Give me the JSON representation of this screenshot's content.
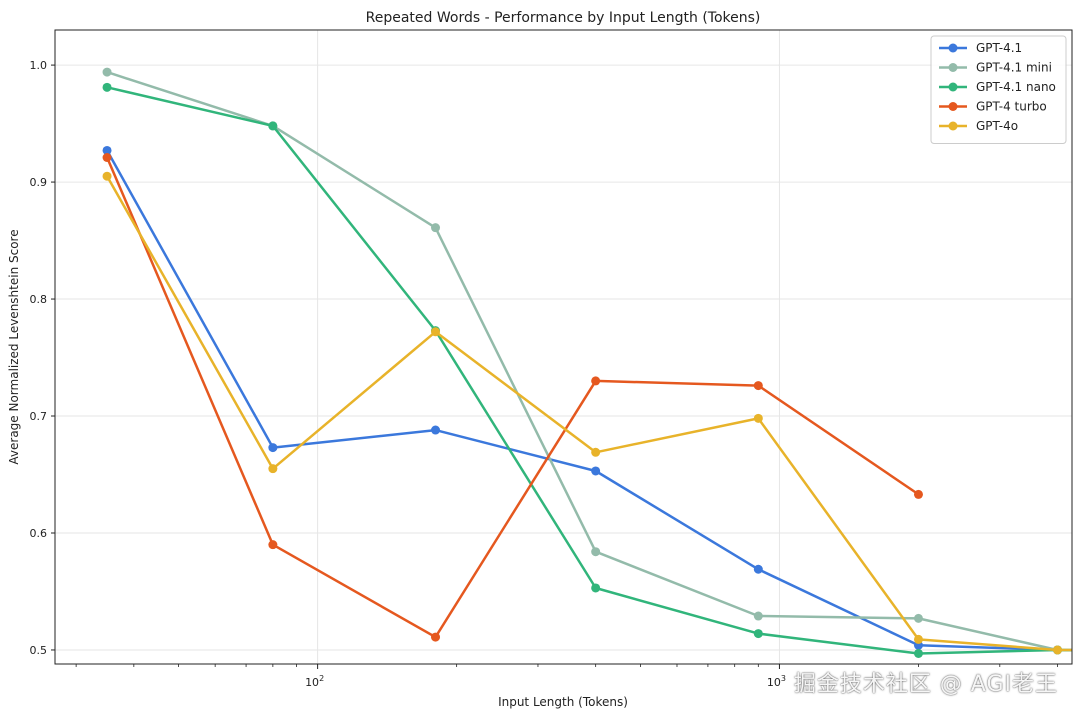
{
  "chart_data": {
    "type": "line",
    "title": "Repeated Words - Performance by Input Length (Tokens)",
    "xlabel": "Input Length (Tokens)",
    "ylabel": "Average Normalized Levenshtein Score",
    "x_scale": "log",
    "xlim": [
      27,
      4300
    ],
    "ylim": [
      0.488,
      1.03
    ],
    "x_ticks": [
      {
        "value": 100,
        "base": "10",
        "exp": "2"
      },
      {
        "value": 1000,
        "base": "10",
        "exp": "3"
      }
    ],
    "y_ticks": [
      0.5,
      0.6,
      0.7,
      0.8,
      0.9,
      1.0
    ],
    "y_tick_labels": [
      "0.5",
      "0.6",
      "0.7",
      "0.8",
      "0.9",
      "1.0"
    ],
    "grid": true,
    "legend_position": "top-right",
    "x": [
      35,
      80,
      180,
      400,
      900,
      2000,
      4000,
      8000
    ],
    "series": [
      {
        "name": "GPT-4.1",
        "color": "#3b78dc",
        "values": [
          0.927,
          0.673,
          0.688,
          0.653,
          0.569,
          0.504,
          0.5,
          0.499
        ]
      },
      {
        "name": "GPT-4.1 mini",
        "color": "#93bbaa",
        "values": [
          0.994,
          0.948,
          0.861,
          0.584,
          0.529,
          0.527,
          0.5,
          0.499
        ]
      },
      {
        "name": "GPT-4.1 nano",
        "color": "#31b57b",
        "values": [
          0.981,
          0.948,
          0.773,
          0.553,
          0.514,
          0.497,
          0.5,
          0.499
        ]
      },
      {
        "name": "GPT-4 turbo",
        "color": "#e5581f",
        "values": [
          0.921,
          0.59,
          0.511,
          0.73,
          0.726,
          0.633,
          null,
          null
        ]
      },
      {
        "name": "GPT-4o",
        "color": "#e8b32a",
        "values": [
          0.905,
          0.655,
          0.772,
          0.669,
          0.698,
          0.509,
          0.5,
          0.5
        ]
      }
    ]
  },
  "watermark": "掘金技术社区 @ AGI老王"
}
